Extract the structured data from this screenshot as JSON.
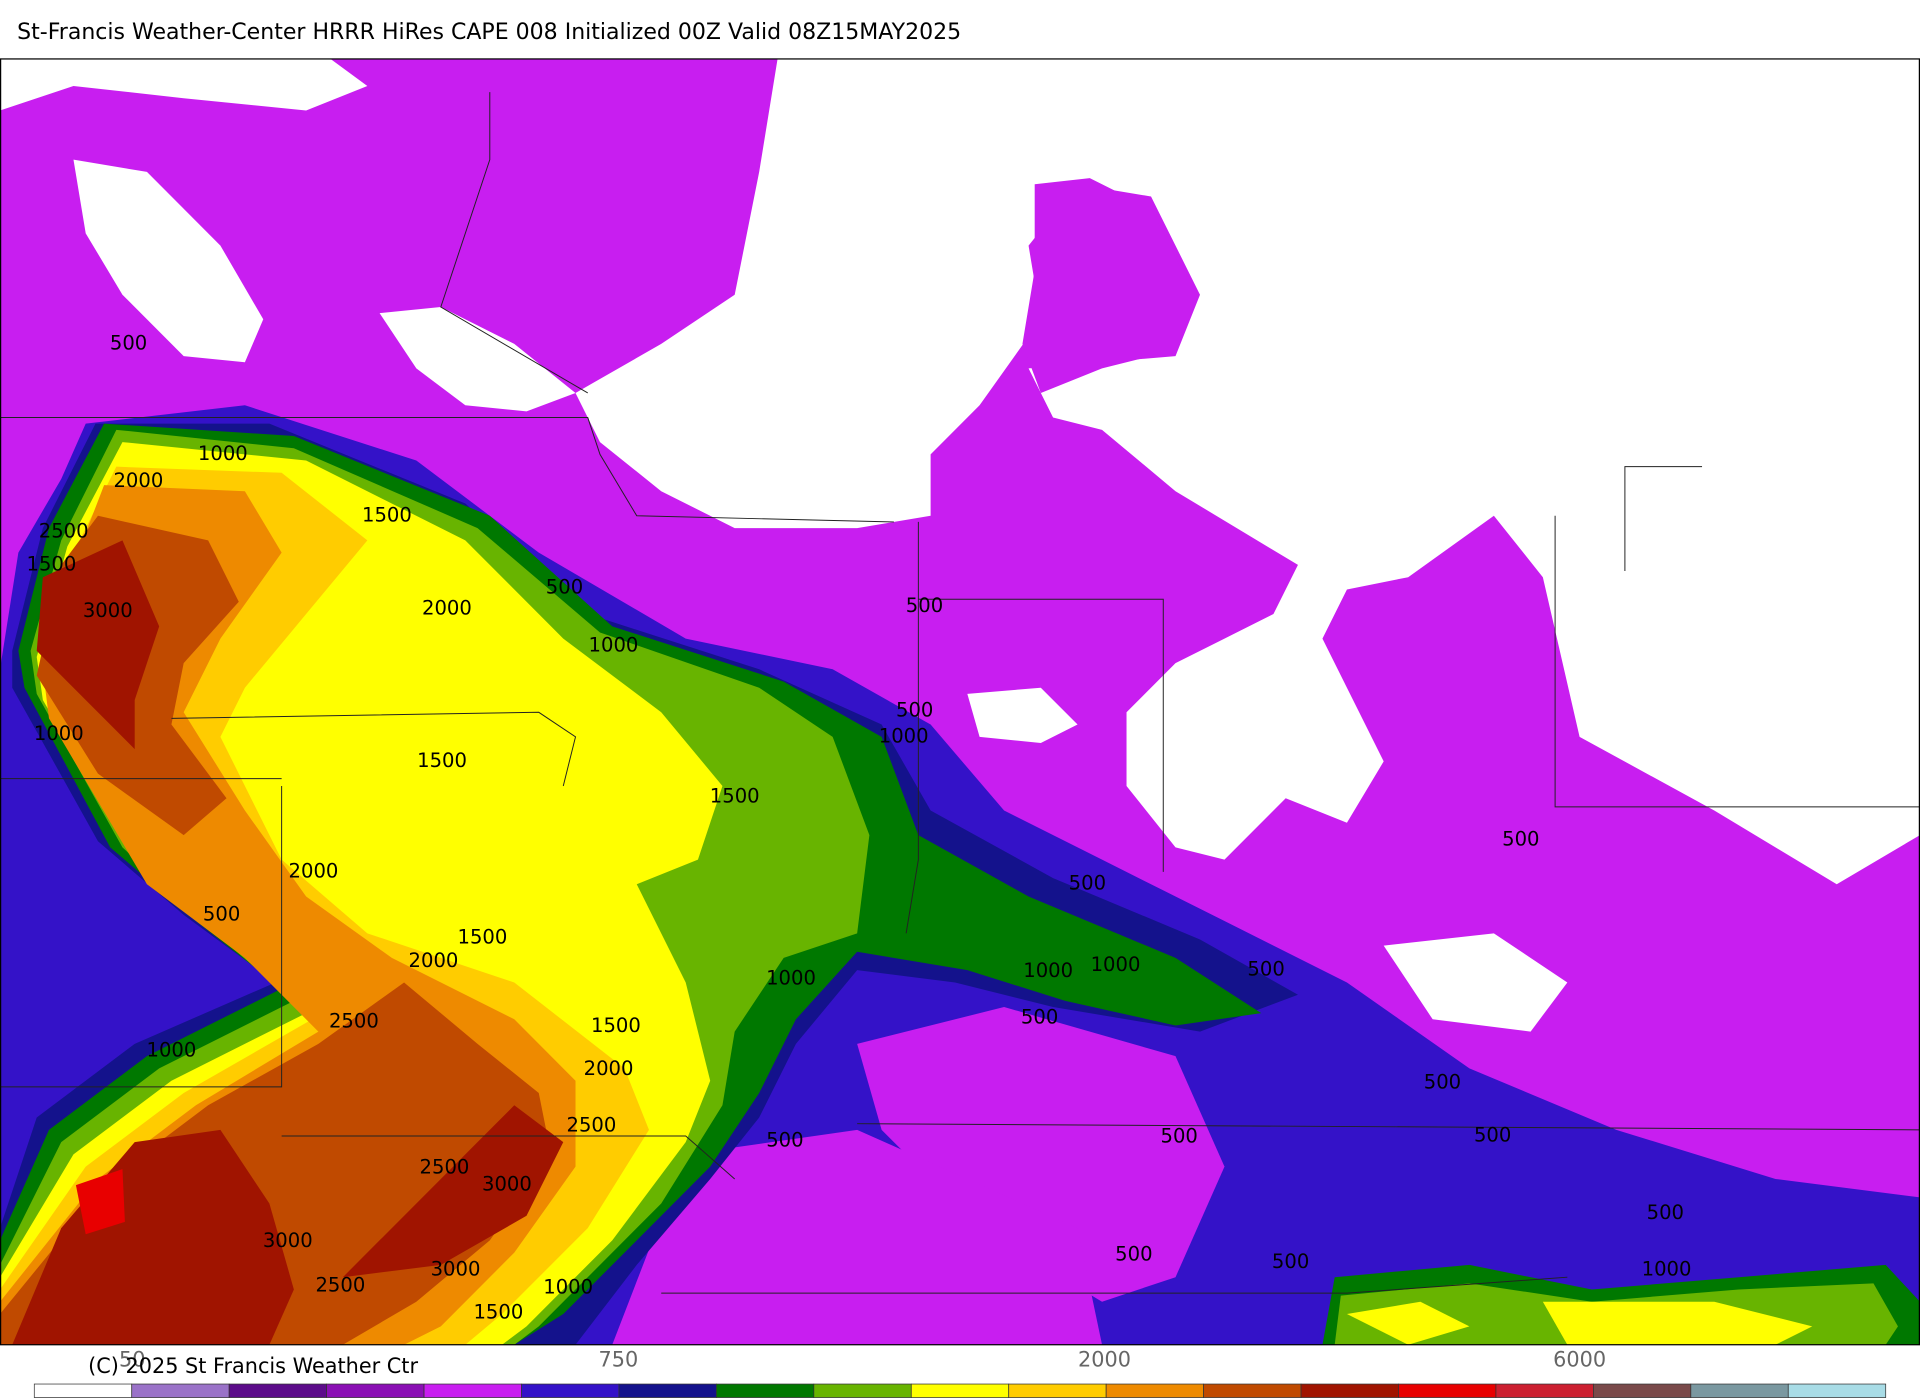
{
  "header": {
    "title": "St-Francis Weather-Center HRRR HiRes CAPE  008 Initialized  00Z Valid 08Z15MAY2025"
  },
  "map": {
    "contour_labels": [
      "500",
      "1000",
      "2000",
      "1500",
      "2500",
      "1500",
      "3000",
      "2000",
      "500",
      "1000",
      "500",
      "500",
      "1000",
      "1500",
      "1500",
      "1000",
      "2000",
      "500",
      "500",
      "500",
      "1500",
      "2000",
      "1000",
      "1000",
      "1000",
      "500",
      "2500",
      "1500",
      "500",
      "1000",
      "2000",
      "500",
      "2500",
      "500",
      "500",
      "500",
      "2500",
      "3000",
      "500",
      "3000",
      "500",
      "500",
      "1000",
      "3000",
      "2500",
      "1000",
      "1500"
    ]
  },
  "colorbar": {
    "colors": [
      "#ffffff",
      "#9a72c8",
      "#5c0c8a",
      "#8a10b4",
      "#c81ef0",
      "#3412c8",
      "#14128c",
      "#007800",
      "#68b400",
      "#ffff00",
      "#ffcc00",
      "#ee8a00",
      "#c04a00",
      "#a01400",
      "#e80000",
      "#cc2030",
      "#7a4a4a",
      "#7a98a0",
      "#a8dce6"
    ],
    "labels": [
      "50",
      "750",
      "2000",
      "6000"
    ],
    "copyright": "(C) 2025 St Francis Weather Ctr"
  }
}
